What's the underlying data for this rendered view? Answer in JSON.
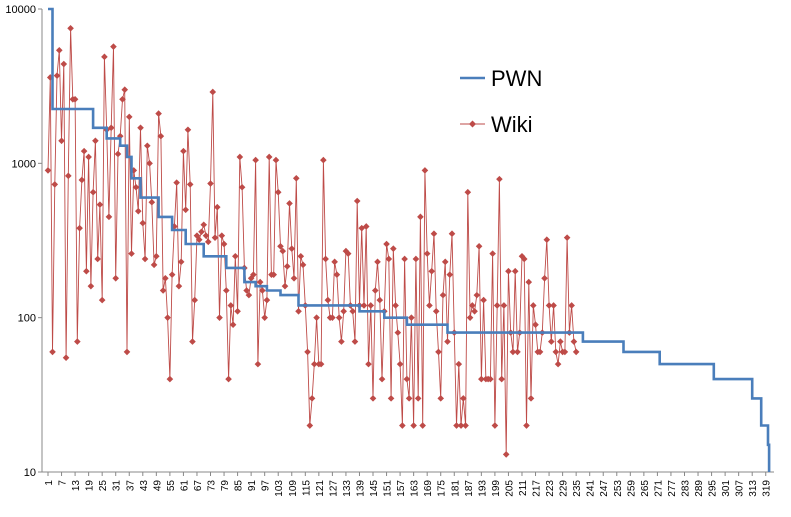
{
  "chart_data": {
    "type": "line",
    "yscale": "log",
    "ylim": [
      10,
      10000
    ],
    "xlim": [
      1,
      320
    ],
    "grid": false,
    "legend_position": "top-right",
    "y_tick_labels": [
      "10",
      "100",
      "1000",
      "10000"
    ],
    "x_tick_labels": [
      "1",
      "7",
      "13",
      "19",
      "25",
      "31",
      "37",
      "43",
      "49",
      "55",
      "61",
      "67",
      "73",
      "79",
      "85",
      "91",
      "97",
      "103",
      "109",
      "115",
      "121",
      "127",
      "133",
      "139",
      "145",
      "151",
      "157",
      "163",
      "169",
      "175",
      "181",
      "187",
      "193",
      "199",
      "205",
      "211",
      "217",
      "223",
      "229",
      "235",
      "241",
      "247",
      "253",
      "259",
      "265",
      "271",
      "277",
      "283",
      "289",
      "295",
      "301",
      "307",
      "313",
      "319"
    ],
    "series": [
      {
        "name": "PWN",
        "color": "#4a7ebb",
        "marker": "none",
        "steps": [
          [
            1,
            10000
          ],
          [
            3,
            2250
          ],
          [
            21,
            1700
          ],
          [
            27,
            1450
          ],
          [
            33,
            1300
          ],
          [
            36,
            1100
          ],
          [
            38,
            800
          ],
          [
            42,
            600
          ],
          [
            50,
            450
          ],
          [
            56,
            370
          ],
          [
            62,
            300
          ],
          [
            70,
            250
          ],
          [
            80,
            210
          ],
          [
            88,
            170
          ],
          [
            93,
            160
          ],
          [
            98,
            150
          ],
          [
            104,
            140
          ],
          [
            112,
            120
          ],
          [
            139,
            110
          ],
          [
            150,
            100
          ],
          [
            160,
            90
          ],
          [
            178,
            80
          ],
          [
            238,
            70
          ],
          [
            256,
            60
          ],
          [
            272,
            50
          ],
          [
            296,
            40
          ],
          [
            313,
            30
          ],
          [
            317,
            20
          ],
          [
            320,
            15
          ],
          [
            320.5,
            10
          ]
        ]
      },
      {
        "name": "Wiki",
        "color": "#be4b48",
        "marker": "diamond",
        "points": [
          [
            1,
            900
          ],
          [
            2,
            3600
          ],
          [
            3,
            60
          ],
          [
            4,
            730
          ],
          [
            5,
            3700
          ],
          [
            6,
            5400
          ],
          [
            7,
            1400
          ],
          [
            8,
            4400
          ],
          [
            9,
            55
          ],
          [
            10,
            830
          ],
          [
            11,
            7500
          ],
          [
            12,
            2600
          ],
          [
            13,
            2600
          ],
          [
            14,
            70
          ],
          [
            15,
            380
          ],
          [
            16,
            780
          ],
          [
            17,
            1200
          ],
          [
            18,
            200
          ],
          [
            19,
            1100
          ],
          [
            20,
            160
          ],
          [
            21,
            650
          ],
          [
            22,
            1400
          ],
          [
            23,
            240
          ],
          [
            24,
            540
          ],
          [
            25,
            130
          ],
          [
            26,
            4900
          ],
          [
            27,
            1650
          ],
          [
            28,
            450
          ],
          [
            29,
            1700
          ],
          [
            30,
            5700
          ],
          [
            31,
            180
          ],
          [
            32,
            1150
          ],
          [
            33,
            1500
          ],
          [
            34,
            2600
          ],
          [
            35,
            3000
          ],
          [
            36,
            60
          ],
          [
            37,
            2000
          ],
          [
            38,
            260
          ],
          [
            39,
            900
          ],
          [
            40,
            700
          ],
          [
            41,
            490
          ],
          [
            42,
            1700
          ],
          [
            43,
            410
          ],
          [
            44,
            240
          ],
          [
            45,
            1300
          ],
          [
            46,
            1000
          ],
          [
            47,
            560
          ],
          [
            48,
            220
          ],
          [
            49,
            250
          ],
          [
            50,
            2100
          ],
          [
            51,
            1500
          ],
          [
            52,
            150
          ],
          [
            53,
            180
          ],
          [
            54,
            100
          ],
          [
            55,
            40
          ],
          [
            56,
            190
          ],
          [
            57,
            390
          ],
          [
            58,
            750
          ],
          [
            59,
            160
          ],
          [
            60,
            230
          ],
          [
            61,
            1200
          ],
          [
            62,
            500
          ],
          [
            63,
            1650
          ],
          [
            64,
            730
          ],
          [
            65,
            70
          ],
          [
            66,
            130
          ],
          [
            67,
            340
          ],
          [
            68,
            320
          ],
          [
            69,
            360
          ],
          [
            70,
            400
          ],
          [
            71,
            340
          ],
          [
            72,
            310
          ],
          [
            73,
            740
          ],
          [
            74,
            2900
          ],
          [
            75,
            330
          ],
          [
            76,
            520
          ],
          [
            77,
            100
          ],
          [
            78,
            340
          ],
          [
            79,
            300
          ],
          [
            80,
            150
          ],
          [
            81,
            40
          ],
          [
            82,
            120
          ],
          [
            83,
            90
          ],
          [
            84,
            250
          ],
          [
            85,
            110
          ],
          [
            86,
            1100
          ],
          [
            87,
            700
          ],
          [
            88,
            210
          ],
          [
            89,
            150
          ],
          [
            90,
            140
          ],
          [
            91,
            180
          ],
          [
            92,
            190
          ],
          [
            93,
            1050
          ],
          [
            94,
            50
          ],
          [
            95,
            170
          ],
          [
            96,
            150
          ],
          [
            97,
            100
          ],
          [
            98,
            130
          ],
          [
            99,
            1100
          ],
          [
            100,
            190
          ],
          [
            101,
            190
          ],
          [
            102,
            1050
          ],
          [
            103,
            650
          ],
          [
            104,
            290
          ],
          [
            105,
            270
          ],
          [
            106,
            160
          ],
          [
            107,
            215
          ],
          [
            108,
            550
          ],
          [
            109,
            280
          ],
          [
            110,
            180
          ],
          [
            111,
            800
          ],
          [
            112,
            110
          ],
          [
            113,
            250
          ],
          [
            114,
            220
          ],
          [
            115,
            120
          ],
          [
            116,
            60
          ],
          [
            117,
            20
          ],
          [
            118,
            30
          ],
          [
            119,
            50
          ],
          [
            120,
            100
          ],
          [
            121,
            50
          ],
          [
            122,
            50
          ],
          [
            123,
            1050
          ],
          [
            124,
            240
          ],
          [
            125,
            130
          ],
          [
            126,
            100
          ],
          [
            127,
            100
          ],
          [
            128,
            230
          ],
          [
            129,
            190
          ],
          [
            130,
            100
          ],
          [
            131,
            70
          ],
          [
            132,
            110
          ],
          [
            133,
            270
          ],
          [
            134,
            260
          ],
          [
            135,
            120
          ],
          [
            136,
            110
          ],
          [
            137,
            70
          ],
          [
            138,
            570
          ],
          [
            139,
            120
          ],
          [
            140,
            380
          ],
          [
            141,
            120
          ],
          [
            142,
            390
          ],
          [
            143,
            50
          ],
          [
            144,
            120
          ],
          [
            145,
            30
          ],
          [
            146,
            150
          ],
          [
            147,
            230
          ],
          [
            148,
            130
          ],
          [
            149,
            40
          ],
          [
            150,
            110
          ],
          [
            151,
            300
          ],
          [
            152,
            240
          ],
          [
            153,
            30
          ],
          [
            154,
            280
          ],
          [
            155,
            120
          ],
          [
            156,
            80
          ],
          [
            157,
            50
          ],
          [
            158,
            20
          ],
          [
            159,
            240
          ],
          [
            160,
            40
          ],
          [
            161,
            30
          ],
          [
            162,
            100
          ],
          [
            163,
            20
          ],
          [
            164,
            240
          ],
          [
            165,
            30
          ],
          [
            166,
            450
          ],
          [
            167,
            20
          ],
          [
            168,
            900
          ],
          [
            169,
            260
          ],
          [
            170,
            120
          ],
          [
            171,
            200
          ],
          [
            172,
            350
          ],
          [
            173,
            110
          ],
          [
            174,
            60
          ],
          [
            175,
            30
          ],
          [
            176,
            140
          ],
          [
            177,
            230
          ],
          [
            178,
            70
          ],
          [
            179,
            190
          ],
          [
            180,
            350
          ],
          [
            181,
            80
          ],
          [
            182,
            20
          ],
          [
            183,
            50
          ],
          [
            184,
            20
          ],
          [
            185,
            30
          ],
          [
            186,
            20
          ],
          [
            187,
            650
          ],
          [
            188,
            100
          ],
          [
            189,
            120
          ],
          [
            190,
            110
          ],
          [
            191,
            140
          ],
          [
            192,
            290
          ],
          [
            193,
            40
          ],
          [
            194,
            130
          ],
          [
            195,
            40
          ],
          [
            196,
            40
          ],
          [
            197,
            40
          ],
          [
            198,
            260
          ],
          [
            199,
            20
          ],
          [
            200,
            120
          ],
          [
            201,
            790
          ],
          [
            202,
            40
          ],
          [
            203,
            120
          ],
          [
            204,
            13
          ],
          [
            205,
            200
          ],
          [
            206,
            80
          ],
          [
            207,
            60
          ],
          [
            208,
            200
          ],
          [
            209,
            60
          ],
          [
            210,
            80
          ],
          [
            211,
            250
          ],
          [
            212,
            240
          ],
          [
            213,
            20
          ],
          [
            214,
            170
          ],
          [
            215,
            30
          ],
          [
            216,
            120
          ],
          [
            217,
            90
          ],
          [
            218,
            60
          ],
          [
            219,
            60
          ],
          [
            220,
            80
          ],
          [
            221,
            180
          ],
          [
            222,
            320
          ],
          [
            223,
            120
          ],
          [
            224,
            70
          ],
          [
            225,
            120
          ],
          [
            226,
            60
          ],
          [
            227,
            50
          ],
          [
            228,
            70
          ],
          [
            229,
            60
          ],
          [
            230,
            60
          ],
          [
            231,
            330
          ],
          [
            232,
            80
          ],
          [
            233,
            120
          ],
          [
            234,
            70
          ],
          [
            235,
            60
          ]
        ]
      }
    ]
  }
}
